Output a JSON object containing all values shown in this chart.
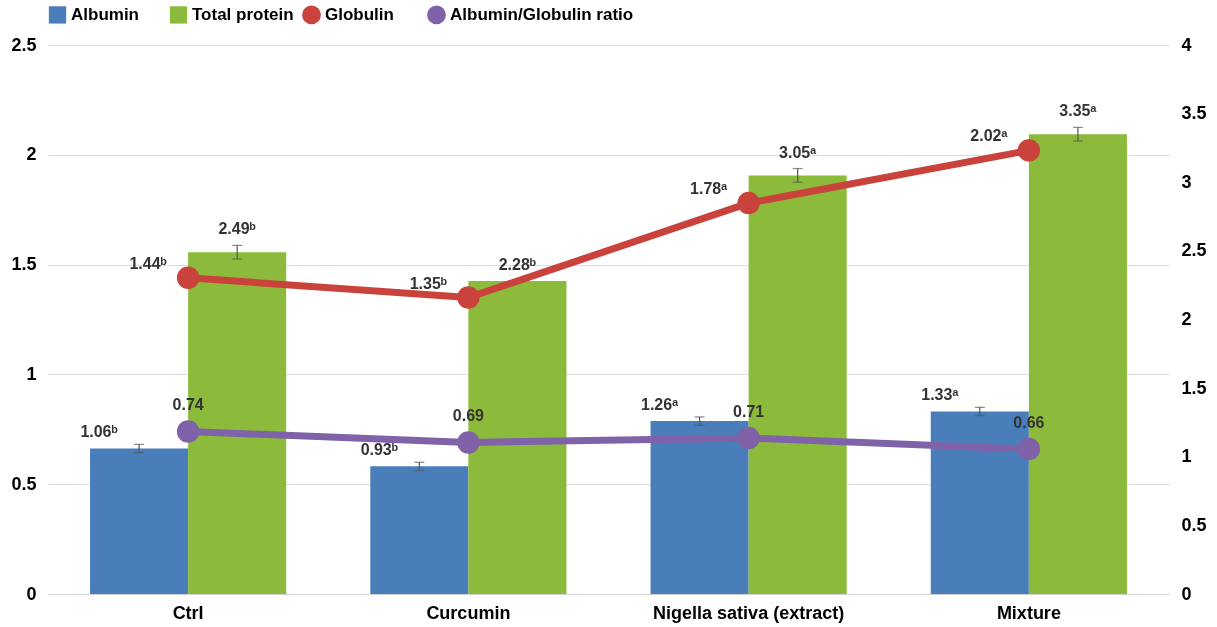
{
  "chart_data": {
    "type": "bar",
    "categories": [
      "Ctrl",
      "Curcumin",
      "Nigella sativa (extract)",
      "Mixture"
    ],
    "series": [
      {
        "name": "Albumin",
        "type": "bar",
        "axis": "y2",
        "color": "#4a7ebb",
        "values": [
          1.06,
          0.93,
          1.26,
          1.33
        ],
        "errors": [
          0.03,
          0.03,
          0.03,
          0.03
        ],
        "value_labels": [
          "1.06ᵇ",
          "0.93ᵇ",
          "1.26ᵃ",
          "1.33ᵃ"
        ]
      },
      {
        "name": "Total protein",
        "type": "bar",
        "axis": "y2",
        "color": "#8cbb3c",
        "values": [
          2.49,
          2.28,
          3.05,
          3.35
        ],
        "errors": [
          0.05,
          null,
          0.05,
          0.05
        ],
        "value_labels": [
          "2.49ᵇ",
          "2.28ᵇ",
          "3.05ᵃ",
          "3.35ᵃ"
        ]
      },
      {
        "name": "Globulin",
        "type": "line",
        "color": "#c9433c",
        "values": [
          1.44,
          1.35,
          1.78,
          2.02
        ],
        "value_labels": [
          "1.44ᵇ",
          "1.35ᵇ",
          "1.78ᵃ",
          "2.02ᵃ"
        ]
      },
      {
        "name": "Albumin/Globulin  ratio",
        "type": "line",
        "color": "#7f62a8",
        "values": [
          0.74,
          0.69,
          0.71,
          0.66
        ],
        "value_labels": [
          "0.74",
          "0.69",
          "0.71",
          "0.66"
        ]
      }
    ],
    "ylim": [
      0,
      2.5
    ],
    "yticks": [
      0,
      0.5,
      1,
      1.5,
      2,
      2.5
    ],
    "y2lim": [
      0,
      4
    ],
    "y2ticks": [
      0,
      0.5,
      1,
      1.5,
      2,
      2.5,
      3,
      3.5,
      4
    ],
    "grid": "y",
    "legend": "top",
    "marker": "circle"
  }
}
